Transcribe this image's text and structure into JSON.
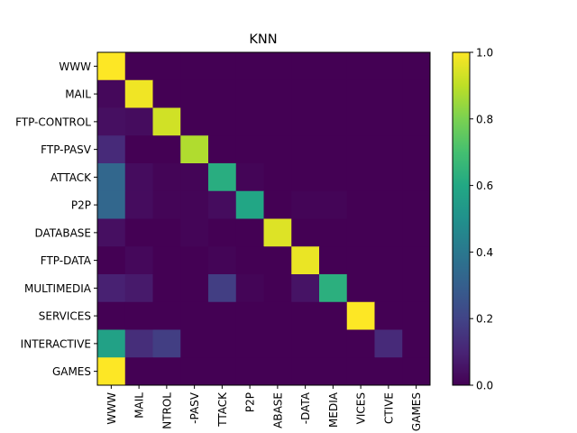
{
  "chart_data": {
    "type": "heatmap",
    "title": "KNN",
    "xlabel": "",
    "ylabel": "",
    "rows": [
      "WWW",
      "MAIL",
      "FTP-CONTROL",
      "FTP-PASV",
      "ATTACK",
      "P2P",
      "DATABASE",
      "FTP-DATA",
      "MULTIMEDIA",
      "SERVICES",
      "INTERACTIVE",
      "GAMES"
    ],
    "x_tick_labels": [
      "WWW",
      "MAIL",
      "NTROL",
      "-PASV",
      "TTACK",
      "P2P",
      "ABASE",
      "-DATA",
      "MEDIA",
      "VICES",
      "CTIVE",
      "GAMES"
    ],
    "matrix": [
      [
        1.0,
        0,
        0,
        0,
        0,
        0,
        0,
        0,
        0,
        0,
        0,
        0
      ],
      [
        0.02,
        0.98,
        0,
        0,
        0,
        0,
        0,
        0,
        0,
        0,
        0,
        0
      ],
      [
        0.04,
        0.03,
        0.93,
        0,
        0,
        0,
        0,
        0,
        0,
        0,
        0,
        0
      ],
      [
        0.12,
        0,
        0,
        0.88,
        0,
        0,
        0,
        0,
        0,
        0,
        0,
        0
      ],
      [
        0.33,
        0.03,
        0.01,
        0.01,
        0.62,
        0.01,
        0,
        0,
        0,
        0,
        0,
        0
      ],
      [
        0.33,
        0.03,
        0.01,
        0.01,
        0.03,
        0.59,
        0,
        0.01,
        0.01,
        0,
        0,
        0
      ],
      [
        0.04,
        0,
        0,
        0.01,
        0,
        0,
        0.95,
        0,
        0,
        0,
        0,
        0
      ],
      [
        0,
        0.02,
        0,
        0,
        0.01,
        0,
        0,
        0.97,
        0,
        0,
        0,
        0
      ],
      [
        0.09,
        0.07,
        0,
        0,
        0.18,
        0.01,
        0,
        0.05,
        0.63,
        0,
        0,
        0
      ],
      [
        0,
        0,
        0,
        0,
        0,
        0,
        0,
        0,
        0,
        1.0,
        0,
        0
      ],
      [
        0.57,
        0.13,
        0.18,
        0,
        0,
        0,
        0,
        0,
        0,
        0,
        0.12,
        0
      ],
      [
        1.0,
        0,
        0,
        0,
        0,
        0,
        0,
        0,
        0,
        0,
        0,
        0
      ]
    ],
    "colorbar": {
      "min": 0.0,
      "max": 1.0,
      "tick_labels": [
        "0.0",
        "0.2",
        "0.4",
        "0.6",
        "0.8",
        "1.0"
      ],
      "tick_values": [
        0,
        0.2,
        0.4,
        0.6,
        0.8,
        1.0
      ]
    },
    "colormap": "viridis",
    "grid": false,
    "legend": "colorbar-right"
  }
}
